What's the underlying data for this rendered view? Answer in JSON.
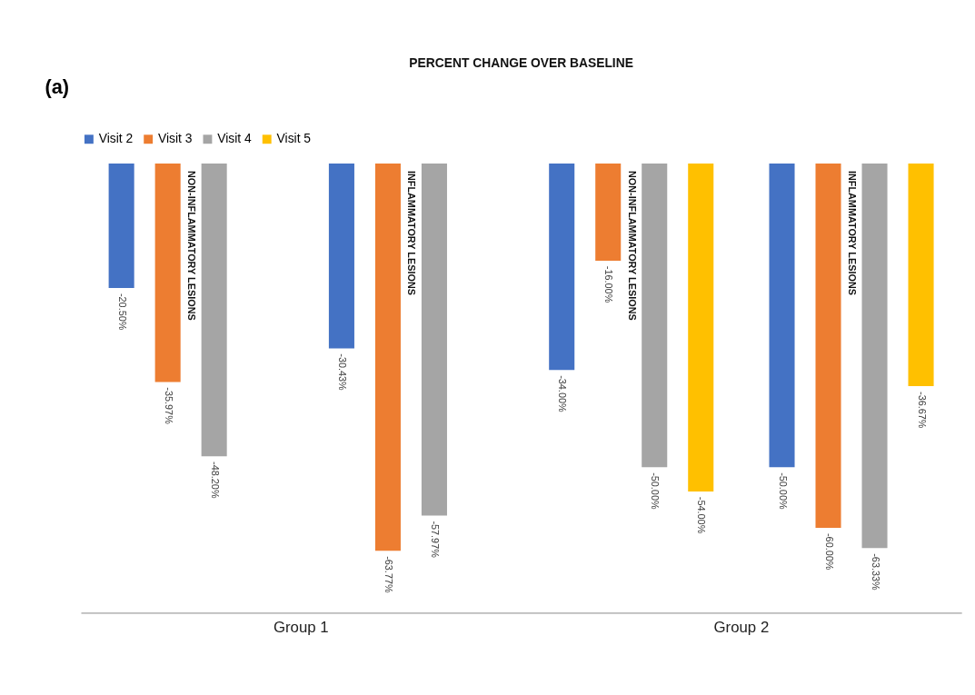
{
  "chart_data": {
    "type": "bar",
    "title": "PERCENT CHANGE OVER BASELINE",
    "categories": [
      "NON-INFLAMMATORY LESIONS",
      "INFLAMMATORY LESIONS",
      "NON-INFLAMMATORY LESIONS",
      "INFLAMMATORY LESIONS"
    ],
    "series": [
      {
        "name": "Visit 2",
        "color": "#4472c4",
        "values": [
          -20.5,
          -30.43,
          -34.0,
          -50.0
        ],
        "value_labels": [
          "-20.50%",
          "-30.43%",
          "-34.00%",
          "-50.00%"
        ]
      },
      {
        "name": "Visit 3",
        "color": "#ed7d31",
        "values": [
          -35.97,
          -63.77,
          -16.0,
          -60.0
        ],
        "value_labels": [
          "-35.97%",
          "-63.77%",
          "-16.00%",
          "-60.00%"
        ]
      },
      {
        "name": "Visit 4",
        "color": "#a5a5a5",
        "values": [
          -48.2,
          -57.97,
          -50.0,
          -63.33
        ],
        "value_labels": [
          "-48.20%",
          "-57.97%",
          "-50.00%",
          "-63.33%"
        ]
      },
      {
        "name": "Visit 5",
        "color": "#ffc000",
        "values": [
          null,
          null,
          -54.0,
          -36.67
        ],
        "value_labels": [
          null,
          null,
          "-54.00%",
          "-36.67%"
        ]
      }
    ],
    "annotations": [
      "(a)",
      "Group 1",
      "Group 2"
    ],
    "legend": "top",
    "grid": false
  }
}
